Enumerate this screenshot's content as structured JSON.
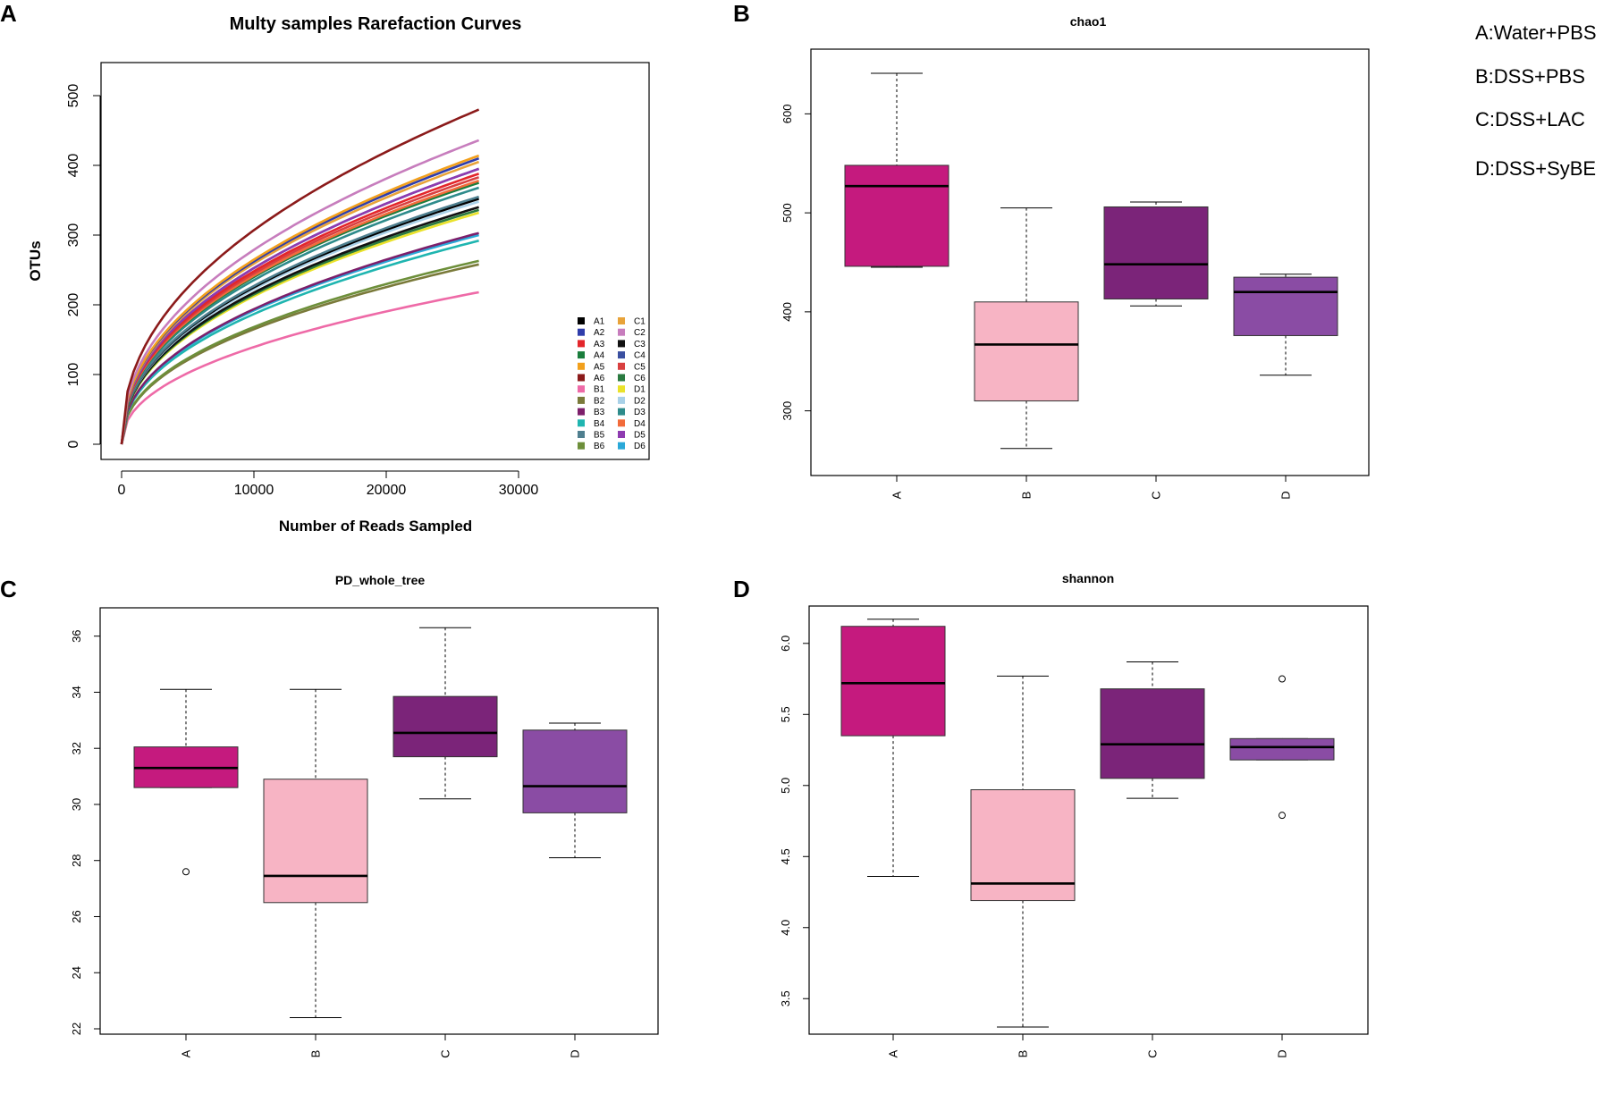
{
  "panel_labels": [
    "A",
    "B",
    "C",
    "D"
  ],
  "group_key": [
    "A:Water+PBS",
    "B:DSS+PBS",
    "C:DSS+LAC",
    "D:DSS+SyBE"
  ],
  "chart_data": [
    {
      "type": "line",
      "title": "Multy samples Rarefaction Curves",
      "xlabel": "Number of Reads Sampled",
      "ylabel": "OTUs",
      "xlim": [
        0,
        30000
      ],
      "ylim": [
        0,
        500
      ],
      "xticks": [
        0,
        10000,
        20000,
        30000
      ],
      "yticks": [
        0,
        100,
        200,
        300,
        400,
        500
      ],
      "x_max_reads": 27000,
      "curve_form": "OTUs proportional to reads^0.45",
      "series": [
        {
          "name": "A1",
          "color": "#000000",
          "final": 352
        },
        {
          "name": "A2",
          "color": "#2f3dab",
          "final": 410
        },
        {
          "name": "A3",
          "color": "#e3262b",
          "final": 388
        },
        {
          "name": "A4",
          "color": "#1a7d3c",
          "final": 375
        },
        {
          "name": "A5",
          "color": "#f2a01c",
          "final": 414
        },
        {
          "name": "A6",
          "color": "#8b1a1a",
          "final": 480
        },
        {
          "name": "B1",
          "color": "#ee6aa7",
          "final": 218
        },
        {
          "name": "B2",
          "color": "#7a7a3a",
          "final": 258
        },
        {
          "name": "B3",
          "color": "#7d1f6b",
          "final": 303
        },
        {
          "name": "B4",
          "color": "#1fb5b0",
          "final": 292
        },
        {
          "name": "B5",
          "color": "#4f7f8f",
          "final": 355
        },
        {
          "name": "B6",
          "color": "#6d8f3a",
          "final": 263
        },
        {
          "name": "C1",
          "color": "#e8a33a",
          "final": 405
        },
        {
          "name": "C2",
          "color": "#c77dbd",
          "final": 436
        },
        {
          "name": "C3",
          "color": "#111111",
          "final": 340
        },
        {
          "name": "C4",
          "color": "#3a4fa0",
          "final": 395
        },
        {
          "name": "C5",
          "color": "#d94040",
          "final": 383
        },
        {
          "name": "C6",
          "color": "#2a7a40",
          "final": 336
        },
        {
          "name": "D1",
          "color": "#eae22a",
          "final": 332
        },
        {
          "name": "D2",
          "color": "#a9d1e8",
          "final": 348
        },
        {
          "name": "D3",
          "color": "#2e8b8b",
          "final": 368
        },
        {
          "name": "D4",
          "color": "#f26b3a",
          "final": 378
        },
        {
          "name": "D5",
          "color": "#8e3bb0",
          "final": 395
        },
        {
          "name": "D6",
          "color": "#2aa8d8",
          "final": 300
        }
      ]
    },
    {
      "type": "box",
      "title": "chao1",
      "categories": [
        "A",
        "B",
        "C",
        "D"
      ],
      "ylim": [
        250,
        650
      ],
      "yticks": [
        300,
        400,
        500,
        600
      ],
      "boxes": [
        {
          "group": "A",
          "min": 445,
          "q1": 446,
          "median": 527,
          "q3": 548,
          "max": 641,
          "outliers": [],
          "color": "#c51a7e"
        },
        {
          "group": "B",
          "min": 262,
          "q1": 310,
          "median": 367,
          "q3": 410,
          "max": 505,
          "outliers": [],
          "color": "#f7b4c4"
        },
        {
          "group": "C",
          "min": 406,
          "q1": 413,
          "median": 448,
          "q3": 506,
          "max": 511,
          "outliers": [],
          "color": "#7b2479"
        },
        {
          "group": "D",
          "min": 336,
          "q1": 376,
          "median": 420,
          "q3": 435,
          "max": 438,
          "outliers": [],
          "color": "#8a4ca4"
        }
      ]
    },
    {
      "type": "box",
      "title": "PD_whole_tree",
      "categories": [
        "A",
        "B",
        "C",
        "D"
      ],
      "ylim": [
        22,
        36.5
      ],
      "yticks": [
        22,
        24,
        26,
        28,
        30,
        32,
        34,
        36
      ],
      "boxes": [
        {
          "group": "A",
          "min": 30.6,
          "q1": 30.6,
          "median": 31.3,
          "q3": 32.05,
          "max": 34.1,
          "outliers": [
            27.6
          ],
          "color": "#c51a7e"
        },
        {
          "group": "B",
          "min": 22.4,
          "q1": 26.5,
          "median": 27.45,
          "q3": 30.9,
          "max": 34.1,
          "outliers": [],
          "color": "#f7b4c4"
        },
        {
          "group": "C",
          "min": 30.2,
          "q1": 31.7,
          "median": 32.55,
          "q3": 33.85,
          "max": 36.3,
          "outliers": [],
          "color": "#7b2479"
        },
        {
          "group": "D",
          "min": 28.1,
          "q1": 29.7,
          "median": 30.65,
          "q3": 32.65,
          "max": 32.9,
          "outliers": [],
          "color": "#8a4ca4"
        }
      ]
    },
    {
      "type": "box",
      "title": "shannon",
      "categories": [
        "A",
        "B",
        "C",
        "D"
      ],
      "ylim": [
        3.25,
        6.2
      ],
      "yticks": [
        3.5,
        4.0,
        4.5,
        5.0,
        5.5,
        6.0
      ],
      "boxes": [
        {
          "group": "A",
          "min": 4.36,
          "q1": 5.35,
          "median": 5.72,
          "q3": 6.12,
          "max": 6.17,
          "outliers": [],
          "color": "#c51a7e"
        },
        {
          "group": "B",
          "min": 3.3,
          "q1": 4.19,
          "median": 4.31,
          "q3": 4.97,
          "max": 5.77,
          "outliers": [],
          "color": "#f7b4c4"
        },
        {
          "group": "C",
          "min": 4.91,
          "q1": 5.05,
          "median": 5.29,
          "q3": 5.68,
          "max": 5.87,
          "outliers": [],
          "color": "#7b2479"
        },
        {
          "group": "D",
          "min": 5.18,
          "q1": 5.18,
          "median": 5.27,
          "q3": 5.33,
          "max": 5.33,
          "outliers": [
            5.75,
            4.79
          ],
          "color": "#8a4ca4"
        }
      ]
    }
  ]
}
